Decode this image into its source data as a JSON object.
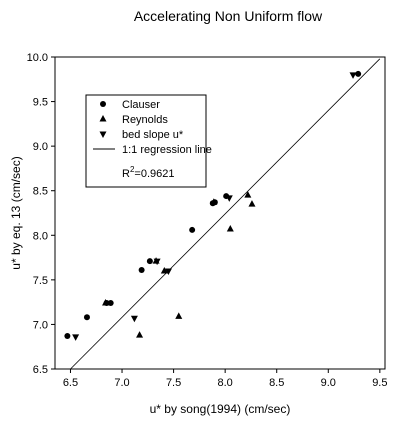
{
  "chart_data": {
    "type": "scatter",
    "title": "Accelerating Non Uniform flow",
    "xlabel": "u* by song(1994) (cm/sec)",
    "ylabel": "u* by eq. 13 (cm/sec)",
    "xlim": [
      6.35,
      9.55
    ],
    "ylim": [
      6.5,
      10.0
    ],
    "xticks": [
      "6.5",
      "7.0",
      "7.5",
      "8.0",
      "8.5",
      "9.0",
      "9.5"
    ],
    "yticks": [
      "6.5",
      "7.0",
      "7.5",
      "8.0",
      "8.5",
      "9.0",
      "9.5",
      "10.0"
    ],
    "grid": false,
    "legend_position": "top-left",
    "series": [
      {
        "name": "Clauser",
        "marker": "circle",
        "points": [
          [
            6.47,
            6.87
          ],
          [
            6.66,
            7.08
          ],
          [
            6.85,
            7.24
          ],
          [
            6.89,
            7.24
          ],
          [
            7.19,
            7.61
          ],
          [
            7.27,
            7.71
          ],
          [
            7.68,
            8.06
          ],
          [
            7.88,
            8.36
          ],
          [
            7.9,
            8.37
          ],
          [
            8.01,
            8.44
          ],
          [
            9.29,
            9.81
          ]
        ]
      },
      {
        "name": "Reynolds",
        "marker": "triangle-up",
        "points": [
          [
            6.84,
            7.24
          ],
          [
            7.17,
            6.88
          ],
          [
            7.33,
            7.71
          ],
          [
            7.41,
            7.6
          ],
          [
            7.55,
            7.09
          ],
          [
            7.89,
            8.37
          ],
          [
            8.05,
            8.07
          ],
          [
            8.22,
            8.45
          ],
          [
            8.26,
            8.35
          ]
        ]
      },
      {
        "name": "bed slope u*",
        "marker": "triangle-down",
        "points": [
          [
            6.55,
            6.86
          ],
          [
            7.12,
            7.07
          ],
          [
            7.34,
            7.71
          ],
          [
            7.45,
            7.6
          ],
          [
            8.04,
            8.42
          ],
          [
            9.24,
            9.8
          ]
        ]
      }
    ],
    "reference_line": {
      "name": "1:1 regression line",
      "from": [
        6.5,
        6.5
      ],
      "to": [
        9.5,
        9.98
      ]
    },
    "annotation": {
      "prefix": "R",
      "superscript": "2",
      "suffix": "=0.9621"
    }
  }
}
